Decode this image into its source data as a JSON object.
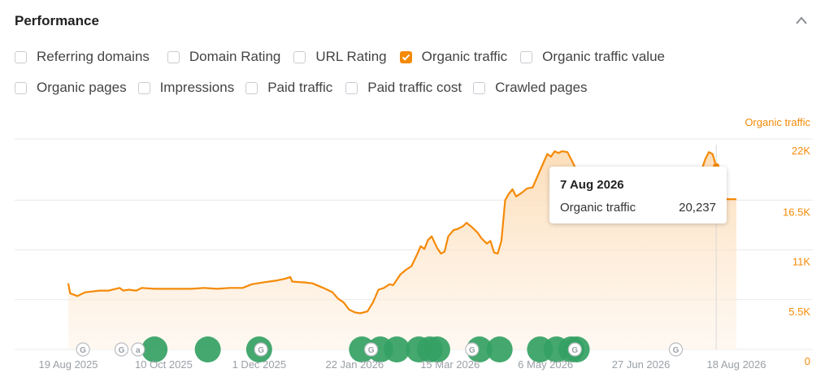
{
  "header": {
    "title": "Performance",
    "collapse_icon": "chevron-up-icon"
  },
  "metrics": [
    {
      "label": "Referring domains",
      "checked": false
    },
    {
      "label": "Domain Rating",
      "checked": false
    },
    {
      "label": "URL Rating",
      "checked": false
    },
    {
      "label": "Organic traffic",
      "checked": true
    },
    {
      "label": "Organic traffic value",
      "checked": false
    },
    {
      "label": "Organic pages",
      "checked": false
    },
    {
      "label": "Impressions",
      "checked": false
    },
    {
      "label": "Paid traffic",
      "checked": false
    },
    {
      "label": "Paid traffic cost",
      "checked": false
    },
    {
      "label": "Crawled pages",
      "checked": false
    }
  ],
  "colors": {
    "accent": "#f58a07",
    "marker": "#34a163",
    "grid": "#e9e9e9"
  },
  "chart_data": {
    "type": "area",
    "series": [
      {
        "name": "Organic traffic",
        "color": "#f58a07"
      }
    ],
    "y_axis_label": "Organic traffic",
    "y_ticks": [
      "0",
      "5.5K",
      "11K",
      "16.5K",
      "22K"
    ],
    "y_tick_values": [
      0,
      5500,
      11000,
      16500,
      22000
    ],
    "x_ticks": [
      "19 Aug 2025",
      "10 Oct 2025",
      "1 Dec 2025",
      "22 Jan 2026",
      "15 Mar 2026",
      "6 May 2026",
      "27 Jun 2026",
      "18 Aug 2026"
    ],
    "x_tick_dates": [
      "2025-08-19",
      "2025-10-10",
      "2025-12-01",
      "2026-01-22",
      "2026-03-15",
      "2026-05-06",
      "2026-06-27",
      "2026-08-18"
    ],
    "ylim": [
      0,
      22000
    ],
    "grid": true,
    "points": [
      [
        "2025-08-19",
        7300
      ],
      [
        "2025-08-20",
        6200
      ],
      [
        "2025-08-24",
        5900
      ],
      [
        "2025-08-28",
        6300
      ],
      [
        "2025-09-01",
        6400
      ],
      [
        "2025-09-05",
        6500
      ],
      [
        "2025-09-10",
        6500
      ],
      [
        "2025-09-16",
        6800
      ],
      [
        "2025-09-18",
        6500
      ],
      [
        "2025-09-21",
        6600
      ],
      [
        "2025-09-25",
        6500
      ],
      [
        "2025-09-28",
        6800
      ],
      [
        "2025-10-05",
        6700
      ],
      [
        "2025-10-15",
        6700
      ],
      [
        "2025-10-25",
        6700
      ],
      [
        "2025-11-01",
        6800
      ],
      [
        "2025-11-08",
        6700
      ],
      [
        "2025-11-15",
        6800
      ],
      [
        "2025-11-22",
        6800
      ],
      [
        "2025-11-27",
        7200
      ],
      [
        "2025-12-03",
        7400
      ],
      [
        "2025-12-10",
        7600
      ],
      [
        "2025-12-15",
        7800
      ],
      [
        "2025-12-18",
        8000
      ],
      [
        "2025-12-19",
        7500
      ],
      [
        "2025-12-26",
        7400
      ],
      [
        "2025-12-30",
        7300
      ],
      [
        "2026-01-05",
        6800
      ],
      [
        "2026-01-10",
        6300
      ],
      [
        "2026-01-13",
        5600
      ],
      [
        "2026-01-16",
        5200
      ],
      [
        "2026-01-19",
        4400
      ],
      [
        "2026-01-22",
        4100
      ],
      [
        "2026-01-25",
        4000
      ],
      [
        "2026-01-29",
        4200
      ],
      [
        "2026-02-01",
        5200
      ],
      [
        "2026-02-04",
        6600
      ],
      [
        "2026-02-07",
        6800
      ],
      [
        "2026-02-10",
        7200
      ],
      [
        "2026-02-12",
        7100
      ],
      [
        "2026-02-14",
        7700
      ],
      [
        "2026-02-16",
        8300
      ],
      [
        "2026-02-19",
        8800
      ],
      [
        "2026-02-22",
        9200
      ],
      [
        "2026-02-25",
        10500
      ],
      [
        "2026-02-27",
        11400
      ],
      [
        "2026-03-01",
        11100
      ],
      [
        "2026-03-03",
        12100
      ],
      [
        "2026-03-05",
        12500
      ],
      [
        "2026-03-08",
        11200
      ],
      [
        "2026-03-10",
        10600
      ],
      [
        "2026-03-12",
        10800
      ],
      [
        "2026-03-14",
        12500
      ],
      [
        "2026-03-17",
        13200
      ],
      [
        "2026-03-19",
        13300
      ],
      [
        "2026-03-22",
        13600
      ],
      [
        "2026-03-24",
        14000
      ],
      [
        "2026-03-27",
        13500
      ],
      [
        "2026-03-30",
        12900
      ],
      [
        "2026-04-01",
        12300
      ],
      [
        "2026-04-04",
        11700
      ],
      [
        "2026-04-06",
        12000
      ],
      [
        "2026-04-08",
        10700
      ],
      [
        "2026-04-10",
        10600
      ],
      [
        "2026-04-12",
        12000
      ],
      [
        "2026-04-14",
        16500
      ],
      [
        "2026-04-16",
        17200
      ],
      [
        "2026-04-18",
        17700
      ],
      [
        "2026-04-20",
        16900
      ],
      [
        "2026-04-23",
        17300
      ],
      [
        "2026-04-26",
        17800
      ],
      [
        "2026-04-29",
        17900
      ],
      [
        "2026-05-02",
        19300
      ],
      [
        "2026-05-05",
        20700
      ],
      [
        "2026-05-07",
        21600
      ],
      [
        "2026-05-09",
        21300
      ],
      [
        "2026-05-11",
        21900
      ],
      [
        "2026-05-13",
        21700
      ],
      [
        "2026-05-15",
        21900
      ],
      [
        "2026-05-18",
        21800
      ],
      [
        "2026-05-21",
        20600
      ],
      [
        "2026-05-24",
        19300
      ],
      [
        "2026-05-28",
        19600
      ],
      [
        "2026-06-02",
        19200
      ],
      [
        "2026-06-08",
        19300
      ],
      [
        "2026-06-15",
        19200
      ],
      [
        "2026-06-22",
        19300
      ],
      [
        "2026-07-01",
        19200
      ],
      [
        "2026-07-10",
        19100
      ],
      [
        "2026-07-18",
        19100
      ],
      [
        "2026-07-25",
        19200
      ],
      [
        "2026-07-30",
        19800
      ],
      [
        "2026-08-01",
        21000
      ],
      [
        "2026-08-03",
        21800
      ],
      [
        "2026-08-05",
        21600
      ],
      [
        "2026-08-07",
        20237
      ],
      [
        "2026-08-09",
        17000
      ],
      [
        "2026-08-11",
        16800
      ],
      [
        "2026-08-13",
        16600
      ],
      [
        "2026-08-18",
        16600
      ]
    ],
    "annotation_markers": [
      {
        "type": "google-update",
        "date": "2025-08-27",
        "label": "G"
      },
      {
        "type": "google-update",
        "date": "2025-09-17",
        "label": "G"
      },
      {
        "type": "ahrefs-update",
        "date": "2025-09-26",
        "label": "a"
      },
      {
        "type": "google-update",
        "date": "2025-12-02",
        "label": "G"
      },
      {
        "type": "google-update",
        "date": "2026-01-31",
        "label": "G"
      },
      {
        "type": "google-update",
        "date": "2026-03-27",
        "label": "G"
      },
      {
        "type": "google-update",
        "date": "2026-05-22",
        "label": "G"
      },
      {
        "type": "google-update",
        "date": "2026-07-16",
        "label": "G"
      }
    ],
    "event_markers": [
      "2025-10-05",
      "2025-11-03",
      "2025-12-01",
      "2026-01-26",
      "2026-02-05",
      "2026-02-14",
      "2026-02-26",
      "2026-03-04",
      "2026-03-08",
      "2026-03-31",
      "2026-04-11",
      "2026-05-03",
      "2026-05-12",
      "2026-05-20",
      "2026-05-23"
    ],
    "hover": {
      "date": "7 Aug 2026",
      "date_iso": "2026-08-07",
      "series": "Organic traffic",
      "value_label": "20,237",
      "value": 20237
    }
  }
}
